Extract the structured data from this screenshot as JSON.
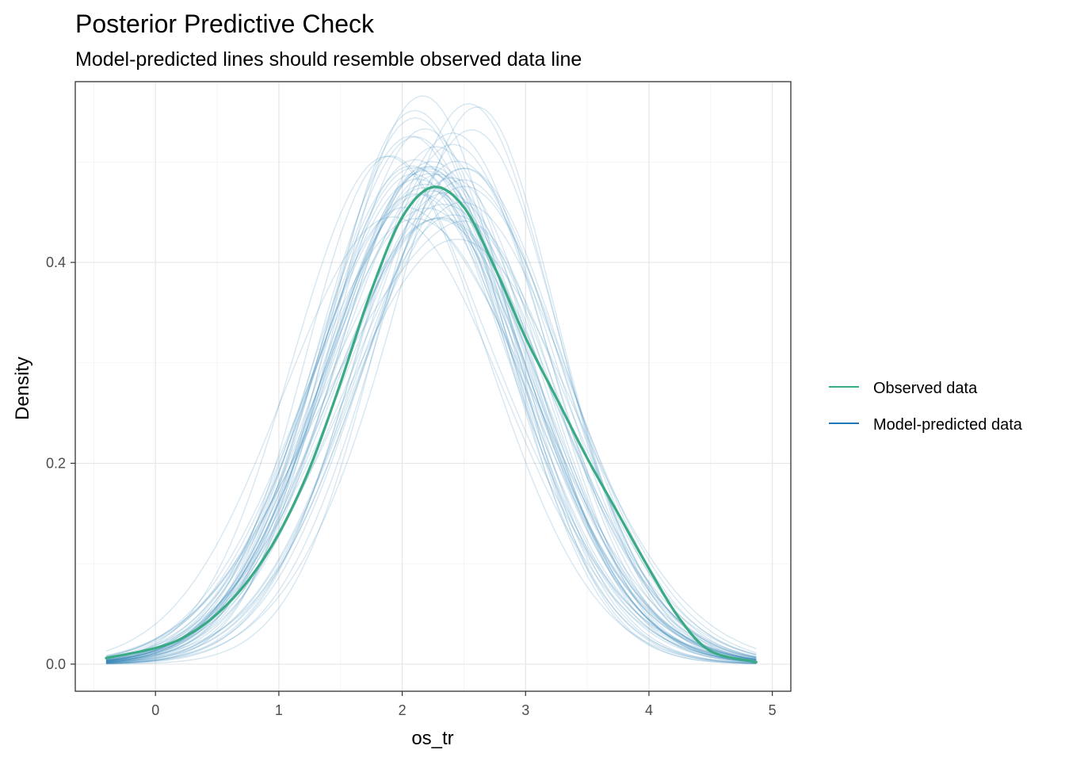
{
  "chart_data": {
    "type": "line",
    "title": "Posterior Predictive Check",
    "subtitle": "Model-predicted lines should resemble observed data line",
    "xlabel": "os_tr",
    "ylabel": "Density",
    "xlim": [
      -0.65,
      5.15
    ],
    "ylim": [
      -0.027,
      0.58
    ],
    "x_ticks": [
      0,
      1,
      2,
      3,
      4,
      5
    ],
    "y_ticks": [
      0.0,
      0.2,
      0.4
    ],
    "x_tick_labels": [
      "0",
      "1",
      "2",
      "3",
      "4",
      "5"
    ],
    "y_tick_labels": [
      "0.0",
      "0.2",
      "0.4"
    ],
    "grid": true,
    "legend_position": "right",
    "x_range": [
      -0.4,
      4.87
    ],
    "series": [
      {
        "name": "Observed data",
        "color": "#3aaa85",
        "x": [
          -0.4,
          0.0,
          0.25,
          0.5,
          0.75,
          1.0,
          1.25,
          1.5,
          1.75,
          2.0,
          2.25,
          2.5,
          2.75,
          3.0,
          3.25,
          3.5,
          3.75,
          4.0,
          4.25,
          4.5,
          4.87
        ],
        "y": [
          0.006,
          0.016,
          0.028,
          0.05,
          0.083,
          0.13,
          0.195,
          0.28,
          0.372,
          0.445,
          0.475,
          0.455,
          0.395,
          0.325,
          0.265,
          0.205,
          0.15,
          0.095,
          0.045,
          0.013,
          0.002
        ]
      },
      {
        "name": "Model-predicted data",
        "color": "#1f78b4",
        "opacity": 0.18,
        "draws": 50
      }
    ]
  },
  "legend": {
    "items": [
      {
        "label": "Observed data",
        "color": "#3aaa85"
      },
      {
        "label": "Model-predicted data",
        "color": "#1f78b4"
      }
    ]
  }
}
